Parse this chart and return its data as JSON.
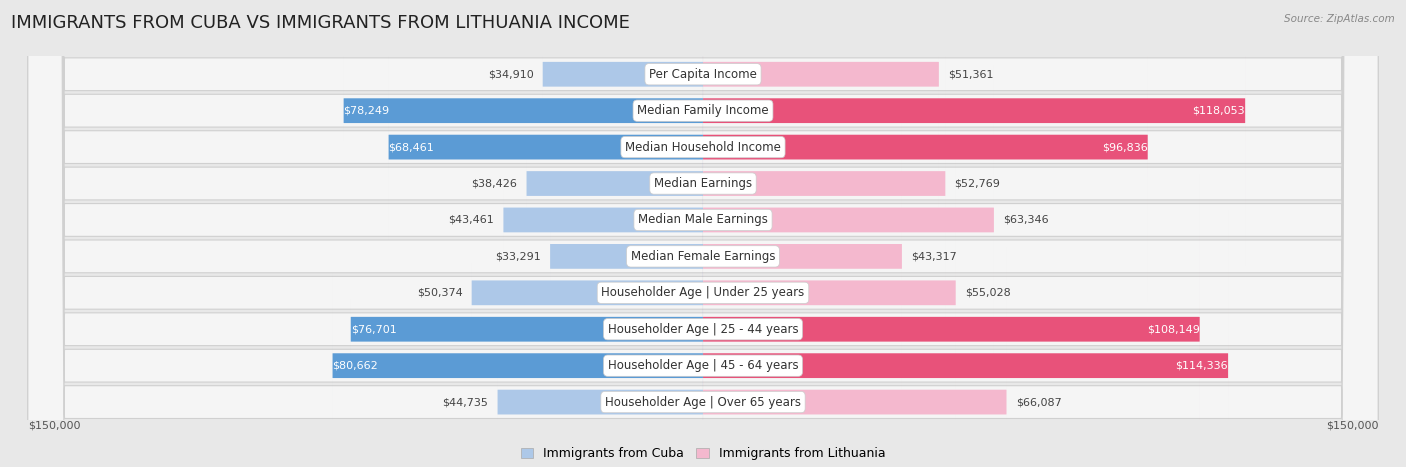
{
  "title": "IMMIGRANTS FROM CUBA VS IMMIGRANTS FROM LITHUANIA INCOME",
  "source": "Source: ZipAtlas.com",
  "categories": [
    "Per Capita Income",
    "Median Family Income",
    "Median Household Income",
    "Median Earnings",
    "Median Male Earnings",
    "Median Female Earnings",
    "Householder Age | Under 25 years",
    "Householder Age | 25 - 44 years",
    "Householder Age | 45 - 64 years",
    "Householder Age | Over 65 years"
  ],
  "cuba_values": [
    34910,
    78249,
    68461,
    38426,
    43461,
    33291,
    50374,
    76701,
    80662,
    44735
  ],
  "lithuania_values": [
    51361,
    118053,
    96836,
    52769,
    63346,
    43317,
    55028,
    108149,
    114336,
    66087
  ],
  "cuba_color_light": "#adc8e8",
  "cuba_color_dark": "#5b9bd5",
  "lithuania_color_light": "#f4b8ce",
  "lithuania_color_dark": "#e8527a",
  "cuba_label": "Immigrants from Cuba",
  "lithuania_label": "Immigrants from Lithuania",
  "max_value": 150000,
  "bg_color": "#e8e8e8",
  "row_bg_color": "#f5f5f5",
  "row_border_color": "#d0d0d0",
  "title_fontsize": 13,
  "label_fontsize": 8.5,
  "value_fontsize": 8,
  "cuba_threshold": 60000,
  "lith_threshold": 80000
}
